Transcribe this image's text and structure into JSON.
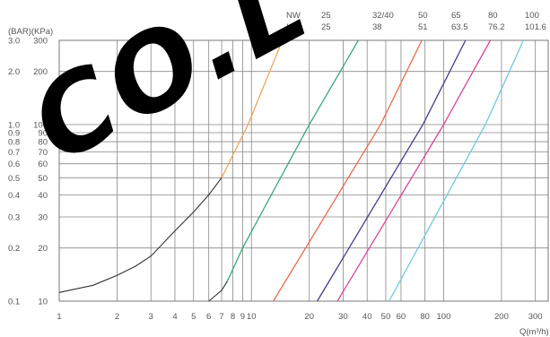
{
  "chart_data": {
    "type": "line",
    "axis_unit_label": "(BAR)(KPa)",
    "x_label": "Q(m³/h)",
    "x_scale": "log",
    "y_scale": "log",
    "x_range": [
      1,
      350
    ],
    "y_range": [
      10,
      300
    ],
    "x_ticks": [
      1,
      2,
      3,
      4,
      5,
      6,
      7,
      8,
      9,
      10,
      20,
      30,
      40,
      50,
      60,
      80,
      100,
      200,
      300
    ],
    "y_ticks_kpa": [
      10,
      20,
      30,
      40,
      50,
      60,
      70,
      80,
      90,
      100,
      200,
      300
    ],
    "y_ticks_bar": [
      {
        "kpa": 10,
        "bar": "0.1"
      },
      {
        "kpa": 20,
        "bar": "0.2"
      },
      {
        "kpa": 30,
        "bar": "0.3"
      },
      {
        "kpa": 40,
        "bar": "0.4"
      },
      {
        "kpa": 50,
        "bar": "0.5"
      },
      {
        "kpa": 60,
        "bar": "0.6"
      },
      {
        "kpa": 70,
        "bar": "0.7"
      },
      {
        "kpa": 80,
        "bar": "0.8"
      },
      {
        "kpa": 90,
        "bar": "0.9"
      },
      {
        "kpa": 100,
        "bar": "1.0"
      },
      {
        "kpa": 200,
        "bar": "2.0"
      },
      {
        "kpa": 300,
        "bar": "3.0"
      }
    ],
    "grid": true,
    "header_row_labels": [
      "NW",
      "Inch"
    ],
    "series": [
      {
        "nw": "25",
        "inch": "25",
        "color": "#e8a860",
        "base_color": "#333333",
        "points": [
          [
            1,
            11.2
          ],
          [
            1.5,
            12.3
          ],
          [
            2,
            14
          ],
          [
            2.5,
            15.8
          ],
          [
            3,
            18
          ],
          [
            4,
            25
          ],
          [
            5,
            32
          ],
          [
            6,
            40
          ],
          [
            7,
            50
          ],
          [
            9.6,
            100
          ],
          [
            14.5,
            300
          ]
        ]
      },
      {
        "nw": "32/40",
        "inch": "38",
        "color": "#3aa878",
        "base_color": "#333333",
        "points": [
          [
            6,
            10
          ],
          [
            7,
            11.5
          ],
          [
            7.5,
            13
          ],
          [
            9,
            20
          ],
          [
            20,
            100
          ],
          [
            36,
            300
          ]
        ]
      },
      {
        "nw": "50",
        "inch": "51",
        "color": "#e86a50",
        "points": [
          [
            13,
            10
          ],
          [
            47,
            100
          ],
          [
            77,
            300
          ]
        ]
      },
      {
        "nw": "65",
        "inch": "63.5",
        "color": "#4a3a8a",
        "points": [
          [
            22,
            10
          ],
          [
            78,
            100
          ],
          [
            130,
            300
          ]
        ]
      },
      {
        "nw": "80",
        "inch": "76.2",
        "color": "#d84898",
        "points": [
          [
            28,
            10
          ],
          [
            100,
            100
          ],
          [
            175,
            300
          ]
        ]
      },
      {
        "nw": "100",
        "inch": "101.6",
        "color": "#70c8e0",
        "points": [
          [
            52,
            10
          ],
          [
            165,
            100
          ],
          [
            260,
            300
          ]
        ]
      }
    ]
  }
}
